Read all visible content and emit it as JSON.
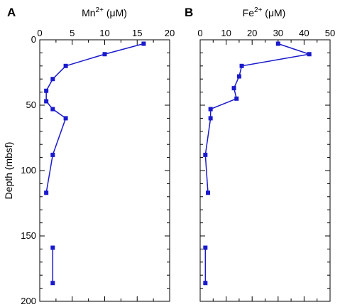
{
  "chart_data": [
    {
      "type": "line",
      "panel_label": "A",
      "xlabel": {
        "base": "Mn",
        "sup": "2+",
        "unit": " (μM)"
      },
      "ylabel": "Depth (mbsf)",
      "xlim": [
        0,
        20
      ],
      "ylim": [
        0,
        200
      ],
      "y_inverted": true,
      "x_axis_position": "top",
      "x_ticks": [
        0,
        5,
        10,
        15,
        20
      ],
      "y_ticks": [
        0,
        50,
        100,
        150,
        200
      ],
      "grid": false,
      "series": [
        {
          "points": [
            [
              16,
              3
            ],
            [
              10,
              11
            ],
            [
              4,
              20
            ],
            [
              2,
              30
            ],
            [
              1,
              39
            ],
            [
              1,
              47
            ],
            [
              2,
              53
            ],
            [
              4,
              60
            ],
            [
              2,
              88
            ],
            [
              1,
              117
            ]
          ]
        },
        {
          "points": [
            [
              2,
              159
            ],
            [
              2,
              186
            ]
          ]
        }
      ]
    },
    {
      "type": "line",
      "panel_label": "B",
      "xlabel": {
        "base": "Fe",
        "sup": "2+",
        "unit": " (μM)"
      },
      "ylabel": "",
      "xlim": [
        0,
        50
      ],
      "ylim": [
        0,
        200
      ],
      "y_inverted": true,
      "x_axis_position": "top",
      "x_ticks": [
        0,
        10,
        20,
        30,
        40,
        50
      ],
      "y_ticks": [
        0,
        50,
        100,
        150,
        200
      ],
      "grid": false,
      "series": [
        {
          "points": [
            [
              30,
              3
            ],
            [
              42,
              11
            ],
            [
              16,
              20
            ],
            [
              15,
              28
            ],
            [
              13,
              37
            ],
            [
              14,
              45
            ],
            [
              4,
              53
            ],
            [
              4,
              60
            ],
            [
              2,
              88
            ],
            [
              3,
              117
            ]
          ]
        },
        {
          "points": [
            [
              2,
              159
            ],
            [
              2,
              186
            ]
          ]
        }
      ]
    }
  ],
  "colors": {
    "series": "#1a1acc",
    "axes": "#000000"
  }
}
